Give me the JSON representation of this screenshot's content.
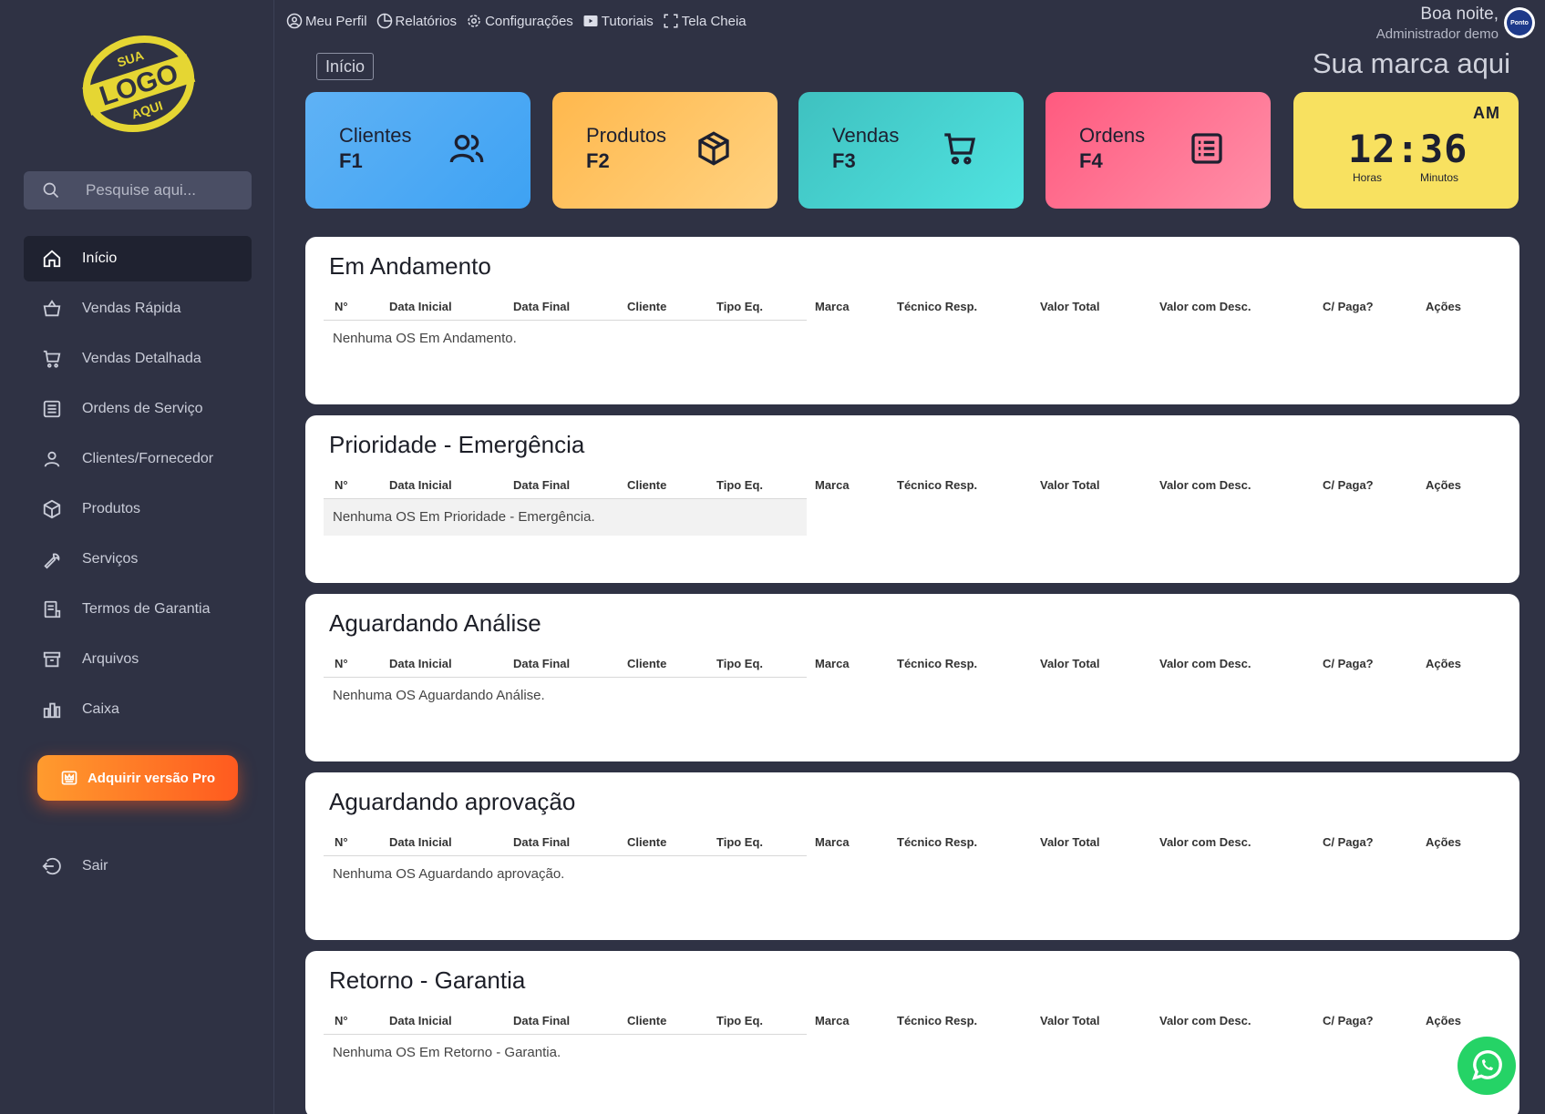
{
  "sidebar": {
    "logo": {
      "line1": "SUA",
      "line2": "LOGO",
      "line3": "AQUI"
    },
    "search_placeholder": "Pesquise aqui...",
    "items": [
      {
        "label": "Início",
        "icon": "home-icon",
        "active": true
      },
      {
        "label": "Vendas Rápida",
        "icon": "basket-icon"
      },
      {
        "label": "Vendas Detalhada",
        "icon": "cart-icon"
      },
      {
        "label": "Ordens de Serviço",
        "icon": "list-icon"
      },
      {
        "label": "Clientes/Fornecedor",
        "icon": "user-icon"
      },
      {
        "label": "Produtos",
        "icon": "box-icon"
      },
      {
        "label": "Serviços",
        "icon": "wrench-icon"
      },
      {
        "label": "Termos de Garantia",
        "icon": "document-icon"
      },
      {
        "label": "Arquivos",
        "icon": "archive-icon"
      },
      {
        "label": "Caixa",
        "icon": "bar-chart-icon"
      }
    ],
    "pro_button": "Adquirir versão Pro",
    "logout": "Sair"
  },
  "topbar": {
    "links": [
      "Meu Perfil",
      "Relatórios",
      "Configurações",
      "Tutoriais",
      "Tela Cheia"
    ],
    "greeting": "Boa noite,",
    "user": "Administrador demo",
    "avatar_text": "Ponto"
  },
  "breadcrumb": "Início",
  "brand": "Sua marca aqui",
  "cards": [
    {
      "label": "Clientes",
      "key": "F1",
      "color": "#3ea2f3"
    },
    {
      "label": "Produtos",
      "key": "F2",
      "color": "#ffc266"
    },
    {
      "label": "Vendas",
      "key": "F3",
      "color": "#48d4d2"
    },
    {
      "label": "Ordens",
      "key": "F4",
      "color": "#ff7592"
    }
  ],
  "clock": {
    "ampm": "AM",
    "time": "12:36",
    "hours_label": "Horas",
    "minutes_label": "Minutos",
    "color": "#f8e160"
  },
  "columns": [
    "N°",
    "Data Inicial",
    "Data Final",
    "Cliente",
    "Tipo Eq.",
    "Marca",
    "Técnico Resp.",
    "Valor Total",
    "Valor com Desc.",
    "C/ Paga?",
    "Ações"
  ],
  "panels": [
    {
      "title": "Em Andamento",
      "empty": "Nenhuma OS Em Andamento."
    },
    {
      "title": "Prioridade - Emergência",
      "empty": "Nenhuma OS Em Prioridade - Emergência."
    },
    {
      "title": "Aguardando Análise",
      "empty": "Nenhuma OS Aguardando Análise."
    },
    {
      "title": "Aguardando aprovação",
      "empty": "Nenhuma OS Aguardando aprovação."
    },
    {
      "title": "Retorno - Garantia",
      "empty": "Nenhuma OS Em Retorno - Garantia."
    }
  ]
}
